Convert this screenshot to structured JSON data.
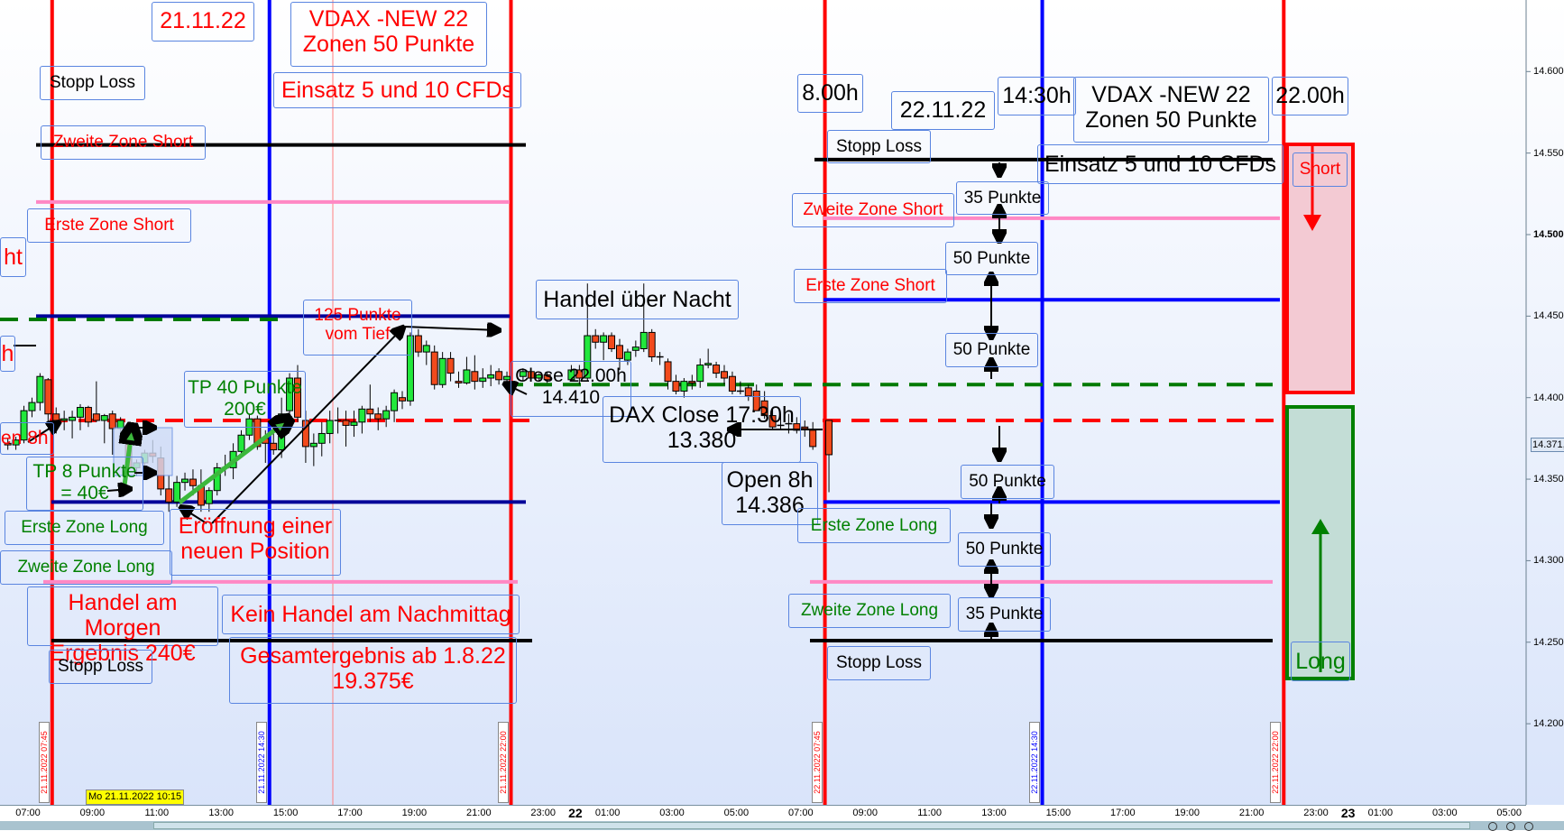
{
  "colors": {
    "bull": "#22e83c",
    "bear": "#f24a1c",
    "red_line": "#ff0000",
    "blue_line": "#0000ff",
    "navy_line": "#000099",
    "pink_line": "#ff88c4",
    "green_dash": "#007a00",
    "red_dash": "#ff0000",
    "black_line": "#000000",
    "tp_arrow": "#3cb83c"
  },
  "chart_data": {
    "type": "candlestick",
    "yaxis": {
      "ticks": [
        "14.200",
        "14.250",
        "14.300",
        "14.350",
        "14.400",
        "14.450",
        "14.500",
        "14.550",
        "14.600"
      ],
      "tick_values": [
        14200,
        14250,
        14300,
        14350,
        14400,
        14450,
        14500,
        14550,
        14600
      ],
      "bold_tick": "14.500",
      "range": [
        14180,
        14620
      ],
      "current_price_label": "14.371,",
      "current_price": 14371
    },
    "xaxis": {
      "ticks": [
        "07:00",
        "09:00",
        "11:00",
        "13:00",
        "15:00",
        "17:00",
        "19:00",
        "21:00",
        "23:00",
        "01:00",
        "03:00",
        "05:00",
        "07:00",
        "09:00",
        "11:00",
        "13:00",
        "15:00",
        "17:00",
        "19:00",
        "21:00",
        "23:00",
        "01:00",
        "03:00",
        "05:00"
      ],
      "day_markers": [
        "22",
        "23"
      ],
      "cursor_label": "Mo 21.11.2022 10:15"
    },
    "vertical_markers": [
      {
        "label": "21.11.2022 07:45",
        "color": "#ff0000"
      },
      {
        "label": "21.11.2022 14:30",
        "color": "#0000ff"
      },
      {
        "label": "21.11.2022 22:00",
        "color": "#ff0000"
      },
      {
        "label": "22.11.2022 07:45",
        "color": "#ff0000"
      },
      {
        "label": "22.11.2022 14:30",
        "color": "#0000ff"
      },
      {
        "label": "22.11.2022 22:00",
        "color": "#ff0000"
      }
    ],
    "levels_day1": [
      {
        "name": "Stopp Loss",
        "price": 14555,
        "color": "#000000"
      },
      {
        "name": "Zweite Zone Short",
        "price": 14520,
        "color": "#ff88c4"
      },
      {
        "name": "Erste Zone Short",
        "price": 14450,
        "color": "#000099"
      },
      {
        "name": "green-dashed",
        "price": 14448,
        "color": "#007a00",
        "dashed": true
      },
      {
        "name": "red-dashed",
        "price": 14386,
        "color": "#ff0000",
        "dashed": true
      },
      {
        "name": "Erste Zone Long",
        "price": 14336,
        "color": "#000099"
      },
      {
        "name": "Zweite Zone Long",
        "price": 14287,
        "color": "#ff88c4"
      },
      {
        "name": "Stopp Loss",
        "price": 14251,
        "color": "#000000"
      }
    ],
    "levels_day2": [
      {
        "name": "Stopp Loss",
        "price": 14546,
        "color": "#000000"
      },
      {
        "name": "Zweite Zone Short",
        "price": 14510,
        "color": "#ff88c4"
      },
      {
        "name": "Erste Zone Short",
        "price": 14460,
        "color": "#0000ff"
      },
      {
        "name": "green-dashed",
        "price": 14408,
        "color": "#007a00",
        "dashed": true
      },
      {
        "name": "red-dashed",
        "price": 14386,
        "color": "#ff0000",
        "dashed": true
      },
      {
        "name": "Erste Zone Long",
        "price": 14336,
        "color": "#0000ff"
      },
      {
        "name": "Zweite Zone Long",
        "price": 14287,
        "color": "#ff88c4"
      },
      {
        "name": "Stopp Loss",
        "price": 14251,
        "color": "#000000"
      }
    ],
    "candles": {
      "21.11.2022": [
        [
          "06:15",
          14372,
          14375,
          14368,
          14371
        ],
        [
          "06:30",
          14371,
          14376,
          14368,
          14374
        ],
        [
          "06:45",
          14374,
          14395,
          14372,
          14392
        ],
        [
          "07:00",
          14392,
          14400,
          14388,
          14397
        ],
        [
          "07:15",
          14397,
          14415,
          14392,
          14413
        ],
        [
          "07:30",
          14411,
          14412,
          14385,
          14390
        ],
        [
          "07:45",
          14390,
          14394,
          14378,
          14386
        ],
        [
          "08:00",
          14386,
          14392,
          14380,
          14387
        ],
        [
          "08:15",
          14386,
          14392,
          14375,
          14388
        ],
        [
          "08:30",
          14388,
          14396,
          14380,
          14394
        ],
        [
          "08:45",
          14394,
          14395,
          14382,
          14385
        ],
        [
          "09:00",
          14390,
          14410,
          14385,
          14386
        ],
        [
          "09:15",
          14386,
          14390,
          14372,
          14389
        ],
        [
          "09:30",
          14390,
          14392,
          14365,
          14381
        ],
        [
          "09:45",
          14381,
          14388,
          14376,
          14386
        ],
        [
          "10:00",
          14381,
          14383,
          14354,
          14357
        ],
        [
          "10:15",
          14357,
          14362,
          14352,
          14360
        ],
        [
          "10:30",
          14360,
          14368,
          14355,
          14366
        ],
        [
          "10:45",
          14366,
          14374,
          14360,
          14364
        ],
        [
          "11:00",
          14363,
          14370,
          14340,
          14344
        ],
        [
          "11:15",
          14344,
          14352,
          14330,
          14336
        ],
        [
          "11:30",
          14336,
          14352,
          14333,
          14348
        ],
        [
          "11:45",
          14348,
          14354,
          14343,
          14350
        ],
        [
          "12:00",
          14350,
          14356,
          14340,
          14346
        ],
        [
          "12:15",
          14346,
          14356,
          14330,
          14334
        ],
        [
          "12:30",
          14335,
          14345,
          14330,
          14343
        ],
        [
          "12:45",
          14343,
          14360,
          14340,
          14357
        ],
        [
          "13:00",
          14357,
          14365,
          14352,
          14357
        ],
        [
          "13:15",
          14357,
          14372,
          14350,
          14367
        ],
        [
          "13:30",
          14367,
          14380,
          14363,
          14377
        ],
        [
          "13:45",
          14377,
          14390,
          14374,
          14387
        ],
        [
          "14:00",
          14387,
          14389,
          14368,
          14370
        ],
        [
          "14:15",
          14375,
          14380,
          14360,
          14372
        ],
        [
          "14:30",
          14372,
          14378,
          14365,
          14368
        ],
        [
          "14:45",
          14368,
          14400,
          14363,
          14390
        ],
        [
          "15:00",
          14392,
          14415,
          14385,
          14412
        ],
        [
          "15:15",
          14412,
          14420,
          14385,
          14388
        ],
        [
          "15:30",
          14386,
          14392,
          14360,
          14370
        ],
        [
          "15:45",
          14370,
          14378,
          14358,
          14372
        ],
        [
          "16:00",
          14372,
          14385,
          14364,
          14378
        ],
        [
          "16:15",
          14378,
          14392,
          14372,
          14386
        ],
        [
          "16:30",
          14386,
          14394,
          14378,
          14386
        ],
        [
          "16:45",
          14386,
          14392,
          14370,
          14383
        ],
        [
          "17:00",
          14383,
          14392,
          14376,
          14385
        ],
        [
          "17:15",
          14385,
          14395,
          14378,
          14393
        ],
        [
          "17:30",
          14393,
          14408,
          14385,
          14390
        ],
        [
          "17:45",
          14390,
          14394,
          14380,
          14387
        ],
        [
          "18:00",
          14387,
          14395,
          14382,
          14392
        ],
        [
          "18:15",
          14392,
          14405,
          14385,
          14403
        ],
        [
          "18:30",
          14400,
          14404,
          14393,
          14398
        ],
        [
          "18:45",
          14398,
          14440,
          14395,
          14438
        ],
        [
          "19:00",
          14438,
          14442,
          14425,
          14428
        ],
        [
          "19:15",
          14428,
          14435,
          14420,
          14432
        ],
        [
          "19:30",
          14428,
          14432,
          14405,
          14408
        ],
        [
          "19:45",
          14408,
          14428,
          14406,
          14424
        ],
        [
          "20:00",
          14424,
          14428,
          14410,
          14415
        ],
        [
          "20:15",
          14410,
          14416,
          14406,
          14409
        ],
        [
          "20:30",
          14409,
          14425,
          14408,
          14417
        ],
        [
          "20:45",
          14416,
          14426,
          14405,
          14410
        ],
        [
          "21:00",
          14410,
          14418,
          14406,
          14412
        ],
        [
          "21:15",
          14412,
          14420,
          14407,
          14414
        ],
        [
          "21:30",
          14416,
          14418,
          14408,
          14411
        ],
        [
          "21:45",
          14411,
          14416,
          14406,
          14413
        ],
        [
          "22:15",
          14413,
          14418,
          14410,
          14416
        ],
        [
          "22:30",
          14416,
          14418,
          14410,
          14412
        ],
        [
          "22:45",
          14412,
          14415,
          14410,
          14414
        ],
        [
          "23:00",
          14414,
          14416,
          14409,
          14411
        ],
        [
          "23:45",
          14411,
          14420,
          14410,
          14417
        ]
      ],
      "22.11.2022": [
        [
          "00:00",
          14417,
          14420,
          14408,
          14412
        ],
        [
          "00:15",
          14412,
          14470,
          14410,
          14438
        ],
        [
          "00:30",
          14438,
          14442,
          14430,
          14434
        ],
        [
          "00:45",
          14434,
          14440,
          14423,
          14438
        ],
        [
          "01:00",
          14438,
          14440,
          14428,
          14430
        ],
        [
          "01:15",
          14432,
          14436,
          14417,
          14424
        ],
        [
          "01:30",
          14423,
          14430,
          14420,
          14428
        ],
        [
          "01:45",
          14429,
          14435,
          14425,
          14431
        ],
        [
          "02:00",
          14430,
          14470,
          14428,
          14440
        ],
        [
          "02:15",
          14440,
          14442,
          14422,
          14425
        ],
        [
          "02:30",
          14425,
          14428,
          14420,
          14425
        ],
        [
          "02:45",
          14422,
          14424,
          14405,
          14410
        ],
        [
          "03:00",
          14410,
          14414,
          14402,
          14404
        ],
        [
          "03:15",
          14404,
          14412,
          14400,
          14410
        ],
        [
          "03:30",
          14410,
          14414,
          14405,
          14409
        ],
        [
          "03:45",
          14410,
          14424,
          14406,
          14420
        ],
        [
          "04:00",
          14420,
          14430,
          14418,
          14421
        ],
        [
          "04:15",
          14420,
          14422,
          14412,
          14415
        ],
        [
          "04:30",
          14416,
          14420,
          14408,
          14412
        ],
        [
          "04:45",
          14413,
          14416,
          14402,
          14404
        ],
        [
          "05:00",
          14404,
          14410,
          14402,
          14404
        ],
        [
          "05:15",
          14406,
          14408,
          14398,
          14401
        ],
        [
          "05:30",
          14404,
          14408,
          14392,
          14392
        ],
        [
          "05:45",
          14398,
          14404,
          14387,
          14389
        ],
        [
          "06:00",
          14389,
          14394,
          14380,
          14382
        ],
        [
          "06:15",
          14383,
          14390,
          14380,
          14383
        ],
        [
          "06:30",
          14384,
          14390,
          14378,
          14384
        ],
        [
          "06:45",
          14384,
          14388,
          14378,
          14380
        ],
        [
          "07:00",
          14382,
          14386,
          14376,
          14381
        ],
        [
          "07:15",
          14380,
          14385,
          14368,
          14370
        ],
        [
          "07:45",
          14386,
          14386,
          14342,
          14365
        ]
      ]
    }
  },
  "annotations": {
    "date1": "21.11.22",
    "vdax1": "VDAX -NEW 22\nZonen 50  Punkte",
    "einsatz1": "Einsatz 5 und 10 CFDs",
    "stopp1": "Stopp Loss",
    "zweite_short1": "Zweite Zone Short",
    "erste_short1": "Erste Zone Short",
    "clip_ht": "ht",
    "clip_h": "h",
    "clip_en8h": "en 8h",
    "tp8": "TP  8 Punkte\n= 40€",
    "erste_long1": "Erste Zone Long",
    "eroeffnung": "Eröffnung einer\nneuen Position",
    "zweite_long1": "Zweite Zone Long",
    "handel_morgen": "Handel am Morgen\nErgebnis 240€",
    "kein_handel": "Kein Handel am Nachmittag",
    "gesamt": "Gesamtergebnis  ab 1.8.22\n19.375€",
    "stopp1_low": "Stopp Loss",
    "tp40": "TP 40 Punkte\n200€",
    "p125": "125  Punkte\nvom Tief",
    "nacht": "Handel über Nacht",
    "close22": "Close 22.00h\n14.410",
    "dax_close": "DAX Close 17:30h\n13.380",
    "open8": "Open 8h\n14.386",
    "t800": "8.00h",
    "date2": "22.11.22",
    "t1430": "14:30h",
    "vdax2": "VDAX -NEW 22\nZonen 50  Punkte",
    "t2200": "22.00h",
    "einsatz2": "Einsatz 5 und 10 CFDs",
    "stopp2": "Stopp Loss",
    "p35a": "35 Punkte",
    "zweite_short2": "Zweite Zone Short",
    "p50a": "50 Punkte",
    "erste_short2": "Erste Zone Short",
    "p50b": "50 Punkte",
    "p50c": "50 Punkte",
    "erste_long2": "Erste Zone Long",
    "p50d": "50 Punkte",
    "zweite_long2": "Zweite Zone Long",
    "p35b": "35 Punkte",
    "stopp2_low": "Stopp Loss",
    "short": "Short",
    "long": "Long"
  }
}
